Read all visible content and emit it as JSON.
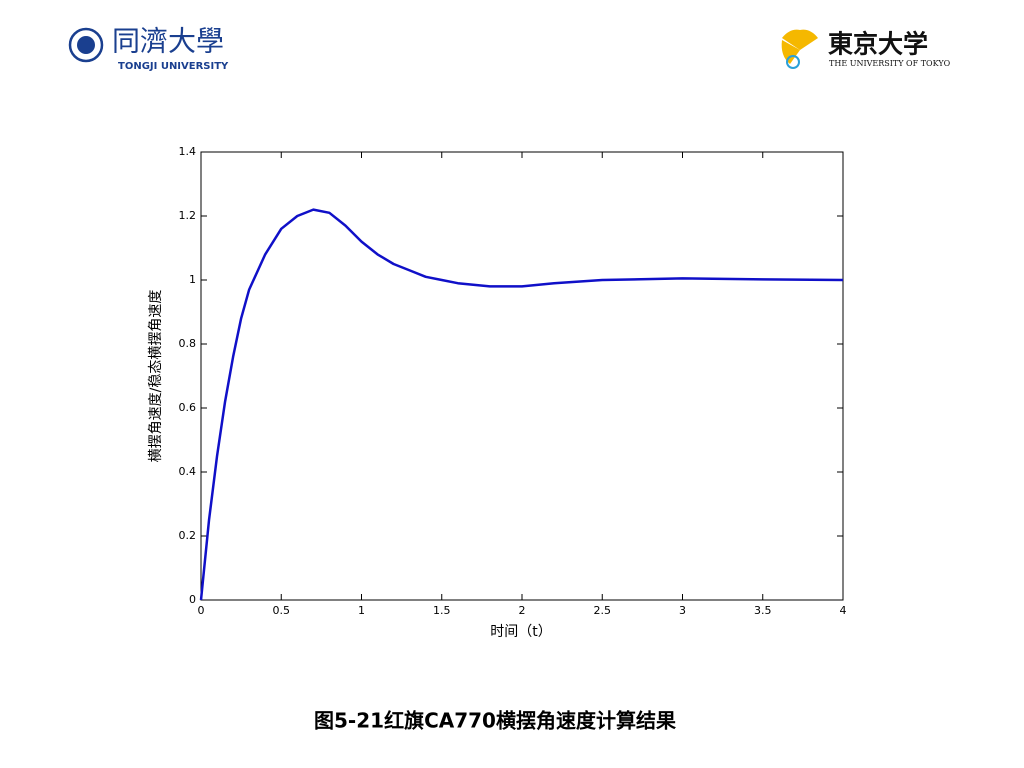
{
  "header": {
    "left_name": "同濟大學",
    "left_sub": "TONGJI UNIVERSITY",
    "right_name": "東京大学",
    "right_sub": "THE UNIVERSITY OF TOKYO"
  },
  "chart_data": {
    "type": "line",
    "xlabel": "时间（t）",
    "ylabel": "横摆角速度/稳态横摆角速度",
    "x": [
      0,
      0.05,
      0.1,
      0.15,
      0.2,
      0.25,
      0.3,
      0.4,
      0.5,
      0.6,
      0.7,
      0.8,
      0.9,
      1.0,
      1.1,
      1.2,
      1.3,
      1.4,
      1.5,
      1.6,
      1.8,
      2.0,
      2.2,
      2.5,
      3.0,
      3.5,
      4.0
    ],
    "series": [
      {
        "color": "#1010c8",
        "values": [
          0,
          0.25,
          0.45,
          0.62,
          0.76,
          0.88,
          0.97,
          1.08,
          1.16,
          1.2,
          1.22,
          1.21,
          1.17,
          1.12,
          1.08,
          1.05,
          1.03,
          1.01,
          1.0,
          0.99,
          0.98,
          0.98,
          0.99,
          1.0,
          1.005,
          1.002,
          1.0
        ]
      }
    ],
    "xlim": [
      0,
      4
    ],
    "xticks": [
      0,
      0.5,
      1,
      1.5,
      2,
      2.5,
      3,
      3.5,
      4
    ],
    "ylim": [
      0,
      1.4
    ],
    "yticks": [
      0,
      0.2,
      0.4,
      0.6,
      0.8,
      1,
      1.2,
      1.4
    ],
    "grid": false
  },
  "caption": "图5-21红旗CA770横摆角速度计算结果"
}
